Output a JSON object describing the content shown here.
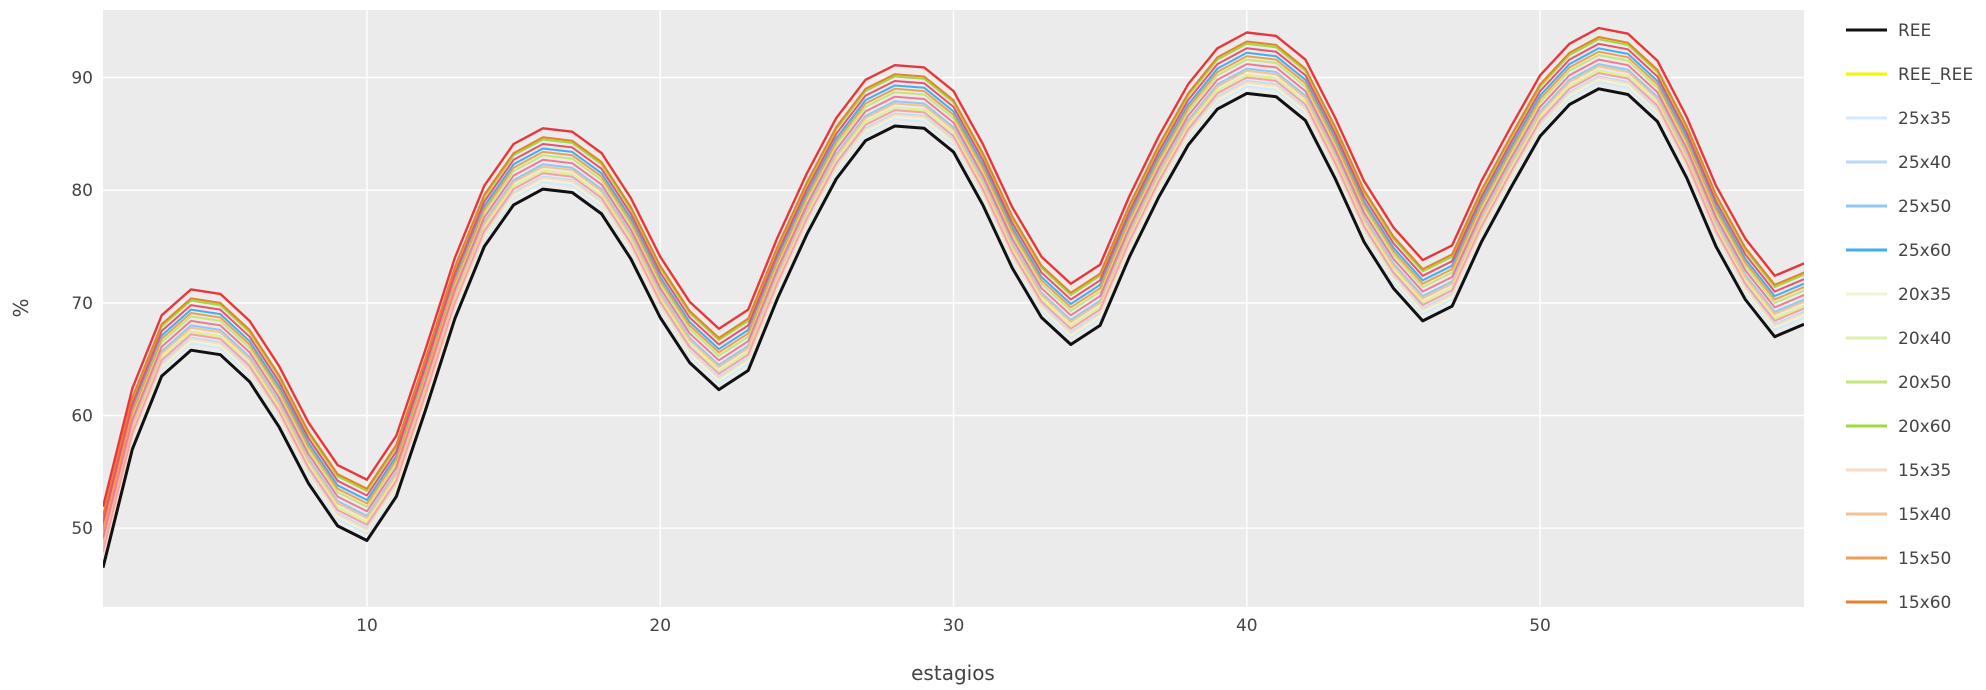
{
  "chart_data": {
    "type": "line",
    "xlabel": "estagios",
    "ylabel": "%",
    "xlim": [
      1,
      59
    ],
    "ylim": [
      43,
      96
    ],
    "x_ticks": [
      10,
      20,
      30,
      40,
      50
    ],
    "y_ticks": [
      50,
      60,
      70,
      80,
      90
    ],
    "grid": true,
    "legend_position": "right",
    "plot_background": "#ebebeb",
    "grid_color": "#ffffff",
    "reference_series": {
      "x_start": 1,
      "x_step": 1,
      "values": [
        46.5,
        57,
        63.5,
        65.8,
        65.4,
        63,
        59,
        54,
        50.2,
        48.9,
        52.8,
        60.5,
        68.6,
        75,
        78.7,
        80.1,
        79.8,
        77.9,
        73.9,
        68.7,
        64.7,
        62.3,
        64,
        70.4,
        76.1,
        81,
        84.4,
        85.7,
        85.5,
        83.4,
        78.7,
        73.1,
        68.7,
        66.3,
        68,
        74.1,
        79.4,
        84,
        87.2,
        88.6,
        88.3,
        86.2,
        81.1,
        75.4,
        71.3,
        68.4,
        69.7,
        75.4,
        80.2,
        84.8,
        87.6,
        89,
        88.5,
        86.1,
        81.1,
        75,
        70.3,
        67,
        68.1
      ]
    },
    "series": [
      {
        "name": "REE",
        "color": "#111111",
        "offset": 0,
        "width": 3
      },
      {
        "name": "REE_REE",
        "color": "#f5f500",
        "offset": 1.6,
        "width": 2.6
      },
      {
        "name": "25x35",
        "color": "#d3e8f8",
        "offset": 0.6,
        "width": 2
      },
      {
        "name": "25x40",
        "color": "#b5daf7",
        "offset": 1.1,
        "width": 2
      },
      {
        "name": "25x50",
        "color": "#8fcaf3",
        "offset": 2.2,
        "width": 2
      },
      {
        "name": "25x60",
        "color": "#3fb0ef",
        "offset": 3.6,
        "width": 2
      },
      {
        "name": "20x35",
        "color": "#eef5d4",
        "offset": 0.8,
        "width": 2
      },
      {
        "name": "20x40",
        "color": "#dcefb0",
        "offset": 1.6,
        "width": 2
      },
      {
        "name": "20x50",
        "color": "#c3e67a",
        "offset": 3,
        "width": 2
      },
      {
        "name": "20x60",
        "color": "#9ed93d",
        "offset": 4.4,
        "width": 2
      },
      {
        "name": "15x35",
        "color": "#f6dcc4",
        "offset": 1,
        "width": 2
      },
      {
        "name": "15x40",
        "color": "#f3c392",
        "offset": 2,
        "width": 2
      },
      {
        "name": "15x50",
        "color": "#ee9f55",
        "offset": 3.3,
        "width": 2
      },
      {
        "name": "15x60",
        "color": "#e9802a",
        "offset": 4.6,
        "width": 2
      },
      {
        "name": "",
        "color": "#f5a0b0",
        "offset": 1.4,
        "width": 2
      },
      {
        "name": "",
        "color": "#f27a95",
        "offset": 2.6,
        "width": 2
      },
      {
        "name": "",
        "color": "#ee5070",
        "offset": 4,
        "width": 2
      },
      {
        "name": "",
        "color": "#e8363a",
        "offset": 5.4,
        "width": 2.4
      }
    ]
  }
}
